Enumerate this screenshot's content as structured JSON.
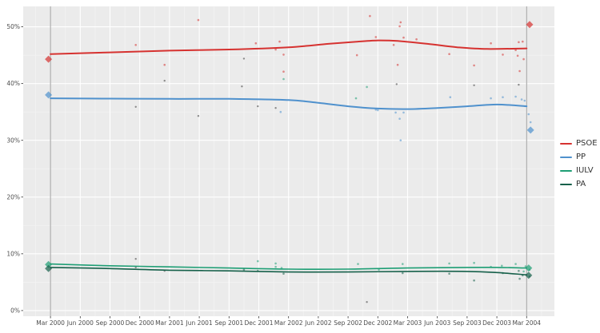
{
  "chart_data": {
    "type": "scatter",
    "title": "",
    "xlabel": "",
    "ylabel": "",
    "x_axis": {
      "tick_labels": [
        "Mar 2000",
        "Jun 2000",
        "Sep 2000",
        "Dec 2000",
        "Mar 2001",
        "Jun 2001",
        "Sep 2001",
        "Dec 2001",
        "Mar 2002",
        "Jun 2002",
        "Sep 2002",
        "Dec 2002",
        "Mar 2003",
        "Jun 2003",
        "Sep 2003",
        "Dec 2003",
        "Mar 2004"
      ],
      "tick_months": [
        0,
        3,
        6,
        9,
        12,
        15,
        18,
        21,
        24,
        27,
        30,
        33,
        36,
        39,
        42,
        45,
        48
      ],
      "range_months": [
        -2.75,
        50.8
      ]
    },
    "y_axis": {
      "tick_labels": [
        "0%",
        "10%",
        "20%",
        "30%",
        "40%",
        "50%"
      ],
      "tick_values": [
        0,
        10,
        20,
        30,
        40,
        50
      ],
      "range": [
        -1.0,
        53.6
      ],
      "minor_values": [
        5,
        15,
        25,
        35,
        45
      ]
    },
    "panel": {
      "background": "#ebebeb",
      "grid_major": "#ffffff",
      "grid_minor": "#f4f4f4",
      "tick_color": "#333333"
    },
    "reference_lines": {
      "months": [
        0,
        48
      ],
      "color": "#9e9e9e"
    },
    "legend_position": "right",
    "series": [
      {
        "name": "PSOE",
        "color": "#d63230",
        "line": [
          [
            0,
            45.2
          ],
          [
            6,
            45.5
          ],
          [
            12,
            45.8
          ],
          [
            18,
            46.0
          ],
          [
            24,
            46.4
          ],
          [
            28,
            47.0
          ],
          [
            31,
            47.4
          ],
          [
            33,
            47.6
          ],
          [
            35,
            47.5
          ],
          [
            38,
            47.0
          ],
          [
            41,
            46.4
          ],
          [
            44,
            46.1
          ],
          [
            48,
            46.2
          ]
        ],
        "points": [
          [
            8.6,
            46.8
          ],
          [
            11.5,
            43.3
          ],
          [
            14.9,
            51.2
          ],
          [
            20.7,
            47.1
          ],
          [
            22.7,
            46.0
          ],
          [
            23.1,
            47.4
          ],
          [
            23.5,
            45.1
          ],
          [
            23.5,
            42.1
          ],
          [
            30.9,
            45.0
          ],
          [
            32.2,
            51.9
          ],
          [
            32.8,
            48.2
          ],
          [
            34.6,
            46.8
          ],
          [
            35.0,
            43.3
          ],
          [
            35.2,
            50.1
          ],
          [
            35.3,
            50.8
          ],
          [
            35.6,
            48.1
          ],
          [
            36.9,
            47.8
          ],
          [
            40.2,
            45.2
          ],
          [
            42.7,
            43.2
          ],
          [
            44.4,
            47.1
          ],
          [
            45.6,
            45.1
          ],
          [
            46.9,
            45.9
          ],
          [
            47.1,
            44.9
          ],
          [
            47.2,
            47.3
          ],
          [
            47.3,
            42.2
          ],
          [
            47.6,
            47.4
          ],
          [
            47.7,
            44.3
          ]
        ],
        "election_results": [
          [
            -0.2,
            44.3
          ],
          [
            48.3,
            50.4
          ]
        ]
      },
      {
        "name": "PP",
        "color": "#4f91cd",
        "line": [
          [
            0,
            37.4
          ],
          [
            6,
            37.35
          ],
          [
            12,
            37.3
          ],
          [
            18,
            37.3
          ],
          [
            24,
            37.1
          ],
          [
            27,
            36.6
          ],
          [
            30,
            36.0
          ],
          [
            33,
            35.6
          ],
          [
            36,
            35.5
          ],
          [
            39,
            35.7
          ],
          [
            42,
            36.0
          ],
          [
            45,
            36.3
          ],
          [
            48,
            36.0
          ]
        ],
        "points": [
          [
            23.2,
            35.0
          ],
          [
            32.8,
            35.4
          ],
          [
            33.0,
            35.3
          ],
          [
            34.8,
            34.9
          ],
          [
            35.2,
            33.8
          ],
          [
            35.3,
            30.0
          ],
          [
            35.6,
            34.9
          ],
          [
            40.3,
            37.6
          ],
          [
            44.4,
            37.4
          ],
          [
            45.6,
            37.6
          ],
          [
            46.9,
            37.7
          ],
          [
            47.5,
            37.2
          ],
          [
            47.8,
            37.0
          ],
          [
            48.2,
            34.6
          ],
          [
            48.4,
            33.2
          ]
        ],
        "election_results": [
          [
            -0.2,
            38.0
          ],
          [
            48.4,
            31.8
          ]
        ]
      },
      {
        "name": "IULV",
        "color": "#1d9e74",
        "line": [
          [
            0,
            8.2
          ],
          [
            6,
            7.9
          ],
          [
            12,
            7.7
          ],
          [
            18,
            7.5
          ],
          [
            24,
            7.3
          ],
          [
            30,
            7.3
          ],
          [
            36,
            7.5
          ],
          [
            42,
            7.6
          ],
          [
            45,
            7.6
          ],
          [
            48,
            7.5
          ]
        ],
        "points": [
          [
            20.9,
            8.7
          ],
          [
            22.7,
            8.3
          ],
          [
            22.7,
            7.7
          ],
          [
            23.3,
            7.5
          ],
          [
            23.5,
            40.8
          ],
          [
            30.8,
            37.4
          ],
          [
            31.0,
            8.2
          ],
          [
            31.9,
            39.4
          ],
          [
            33.1,
            7.2
          ],
          [
            35.5,
            8.2
          ],
          [
            40.2,
            8.3
          ],
          [
            42.7,
            8.4
          ],
          [
            44.4,
            7.7
          ],
          [
            45.5,
            7.9
          ],
          [
            46.9,
            8.2
          ],
          [
            47.7,
            6.9
          ],
          [
            47.9,
            7.8
          ],
          [
            48.3,
            7.2
          ]
        ],
        "election_results": [
          [
            -0.2,
            8.1
          ],
          [
            48.2,
            7.5
          ]
        ]
      },
      {
        "name": "PA",
        "color": "#16604a",
        "line": [
          [
            0,
            7.6
          ],
          [
            6,
            7.4
          ],
          [
            12,
            7.1
          ],
          [
            18,
            7.0
          ],
          [
            24,
            6.8
          ],
          [
            30,
            6.8
          ],
          [
            36,
            6.9
          ],
          [
            42,
            6.9
          ],
          [
            45,
            6.7
          ],
          [
            48,
            6.3
          ]
        ],
        "points": [
          [
            19.5,
            7.2
          ],
          [
            20.9,
            7.0
          ],
          [
            23.5,
            6.5
          ],
          [
            35.5,
            6.6
          ],
          [
            40.2,
            6.5
          ],
          [
            42.7,
            5.3
          ],
          [
            45.6,
            6.6
          ],
          [
            47.2,
            7.0
          ],
          [
            47.3,
            5.6
          ],
          [
            47.6,
            6.2
          ],
          [
            48.3,
            6.0
          ]
        ],
        "election_results": [
          [
            -0.2,
            7.4
          ],
          [
            48.2,
            6.2
          ]
        ]
      }
    ],
    "unlabeled_points": {
      "name": "unlabeled",
      "color": "#6a6a6a",
      "points": [
        [
          8.6,
          35.9
        ],
        [
          8.6,
          9.1
        ],
        [
          8.6,
          7.6
        ],
        [
          11.5,
          40.5
        ],
        [
          11.5,
          7.0
        ],
        [
          14.9,
          34.3
        ],
        [
          19.3,
          39.5
        ],
        [
          19.5,
          44.4
        ],
        [
          20.9,
          36.0
        ],
        [
          22.7,
          35.7
        ],
        [
          31.9,
          1.5
        ],
        [
          34.9,
          39.9
        ],
        [
          42.7,
          39.7
        ],
        [
          47.2,
          39.8
        ]
      ]
    }
  }
}
